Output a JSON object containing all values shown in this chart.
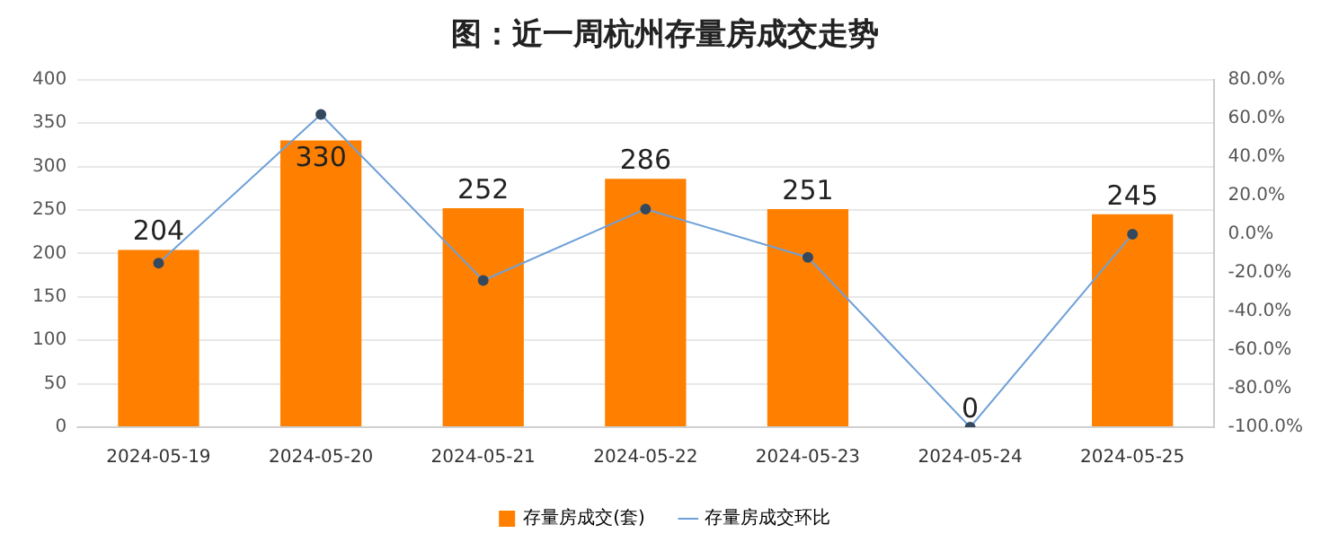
{
  "chart_data": {
    "type": "bar",
    "title": "图：近一周杭州存量房成交走势",
    "categories": [
      "2024-05-19",
      "2024-05-20",
      "2024-05-21",
      "2024-05-22",
      "2024-05-23",
      "2024-05-24",
      "2024-05-25"
    ],
    "series": [
      {
        "name": "存量房成交(套)",
        "color": "#ff8000",
        "values": [
          204,
          330,
          252,
          286,
          251,
          0,
          245
        ],
        "value_labels": [
          "204",
          "330",
          "252",
          "286",
          "251",
          "0",
          "245"
        ]
      },
      {
        "name": "存量房成交环比",
        "type": "line",
        "axis": "y2",
        "color": "#6fa0d8",
        "values": [
          -15,
          62,
          -24,
          13,
          -12,
          -100,
          0
        ]
      }
    ],
    "ylim": [
      0,
      400
    ],
    "yticks": [
      0,
      50,
      100,
      150,
      200,
      250,
      300,
      350,
      400
    ],
    "y2lim": [
      -100,
      80
    ],
    "y2ticks": [
      {
        "value": -100,
        "label": "-100.0%"
      },
      {
        "value": -80,
        "label": "-80.0%"
      },
      {
        "value": -60,
        "label": "-60.0%"
      },
      {
        "value": -40,
        "label": "-40.0%"
      },
      {
        "value": -20,
        "label": "-20.0%"
      },
      {
        "value": 0,
        "label": "0.0%"
      },
      {
        "value": 20,
        "label": "20.0%"
      },
      {
        "value": 40,
        "label": "40.0%"
      },
      {
        "value": 60,
        "label": "60.0%"
      },
      {
        "value": 80,
        "label": "80.0%"
      }
    ],
    "grid": "y",
    "legend": "bottom",
    "marker": "circle"
  }
}
